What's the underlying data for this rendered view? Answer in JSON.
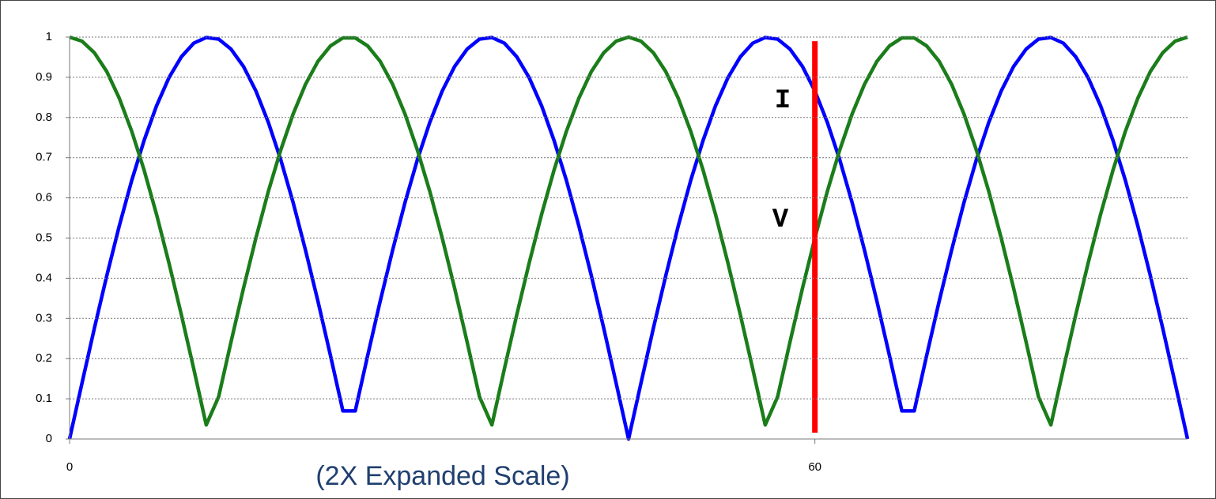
{
  "chart_data": {
    "type": "line",
    "subtitle": "(2X Expanded Scale)",
    "x": [
      0,
      1,
      2,
      3,
      4,
      5,
      6,
      7,
      8,
      9,
      10,
      11,
      12,
      13,
      14,
      15,
      16,
      17,
      18,
      19,
      20,
      21,
      22,
      23,
      24,
      25,
      26,
      27,
      28,
      29,
      30,
      31,
      32,
      33,
      34,
      35,
      36,
      37,
      38,
      39,
      40,
      41,
      42,
      43,
      44,
      45,
      46,
      47,
      48,
      49,
      50,
      51,
      52,
      53,
      54,
      55,
      56,
      57,
      58,
      59,
      60,
      61,
      62,
      63,
      64,
      65,
      66,
      67,
      68,
      69,
      70,
      71,
      72,
      73,
      74,
      75,
      76,
      77,
      78,
      79,
      80,
      81,
      82,
      83,
      84,
      85,
      86,
      87,
      88,
      89,
      90
    ],
    "series": [
      {
        "name": "I",
        "color": "#0000ff",
        "values": [
          0,
          0.139,
          0.276,
          0.407,
          0.53,
          0.643,
          0.743,
          0.829,
          0.899,
          0.951,
          0.985,
          0.999,
          0.995,
          0.97,
          0.927,
          0.866,
          0.788,
          0.695,
          0.588,
          0.469,
          0.342,
          0.208,
          0.07,
          0.07,
          0.208,
          0.342,
          0.469,
          0.588,
          0.695,
          0.788,
          0.866,
          0.927,
          0.97,
          0.995,
          0.999,
          0.985,
          0.951,
          0.899,
          0.829,
          0.743,
          0.643,
          0.53,
          0.407,
          0.276,
          0.139,
          0,
          0.139,
          0.276,
          0.407,
          0.53,
          0.643,
          0.743,
          0.829,
          0.899,
          0.951,
          0.985,
          0.999,
          0.995,
          0.97,
          0.927,
          0.866,
          0.788,
          0.695,
          0.588,
          0.469,
          0.342,
          0.208,
          0.07,
          0.07,
          0.208,
          0.342,
          0.469,
          0.588,
          0.695,
          0.788,
          0.866,
          0.927,
          0.97,
          0.995,
          0.999,
          0.985,
          0.951,
          0.899,
          0.829,
          0.743,
          0.643,
          0.53,
          0.407,
          0.276,
          0.139,
          0
        ]
      },
      {
        "name": "V",
        "color": "#1a7d1a",
        "values": [
          1,
          0.99,
          0.961,
          0.914,
          0.848,
          0.766,
          0.669,
          0.559,
          0.438,
          0.309,
          0.174,
          0.035,
          0.105,
          0.242,
          0.375,
          0.5,
          0.616,
          0.719,
          0.809,
          0.883,
          0.94,
          0.978,
          0.998,
          0.998,
          0.978,
          0.94,
          0.883,
          0.809,
          0.719,
          0.616,
          0.5,
          0.375,
          0.242,
          0.105,
          0.035,
          0.174,
          0.309,
          0.438,
          0.559,
          0.669,
          0.766,
          0.848,
          0.914,
          0.961,
          0.99,
          1,
          0.99,
          0.961,
          0.914,
          0.848,
          0.766,
          0.669,
          0.559,
          0.438,
          0.309,
          0.174,
          0.035,
          0.105,
          0.242,
          0.375,
          0.5,
          0.616,
          0.719,
          0.809,
          0.883,
          0.94,
          0.978,
          0.998,
          0.998,
          0.978,
          0.94,
          0.883,
          0.809,
          0.719,
          0.616,
          0.5,
          0.375,
          0.242,
          0.105,
          0.035,
          0.174,
          0.309,
          0.438,
          0.559,
          0.669,
          0.766,
          0.848,
          0.914,
          0.961,
          0.99,
          1
        ]
      }
    ],
    "vline": {
      "x": 60,
      "top": 0.99,
      "color": "#ff0000"
    },
    "xlim": [
      0,
      90
    ],
    "xticks": [
      0,
      60
    ],
    "ylim": [
      0,
      1
    ],
    "yticks": [
      0,
      0.1,
      0.2,
      0.3,
      0.4,
      0.5,
      0.6,
      0.7,
      0.8,
      0.9,
      1
    ],
    "grid": true
  }
}
